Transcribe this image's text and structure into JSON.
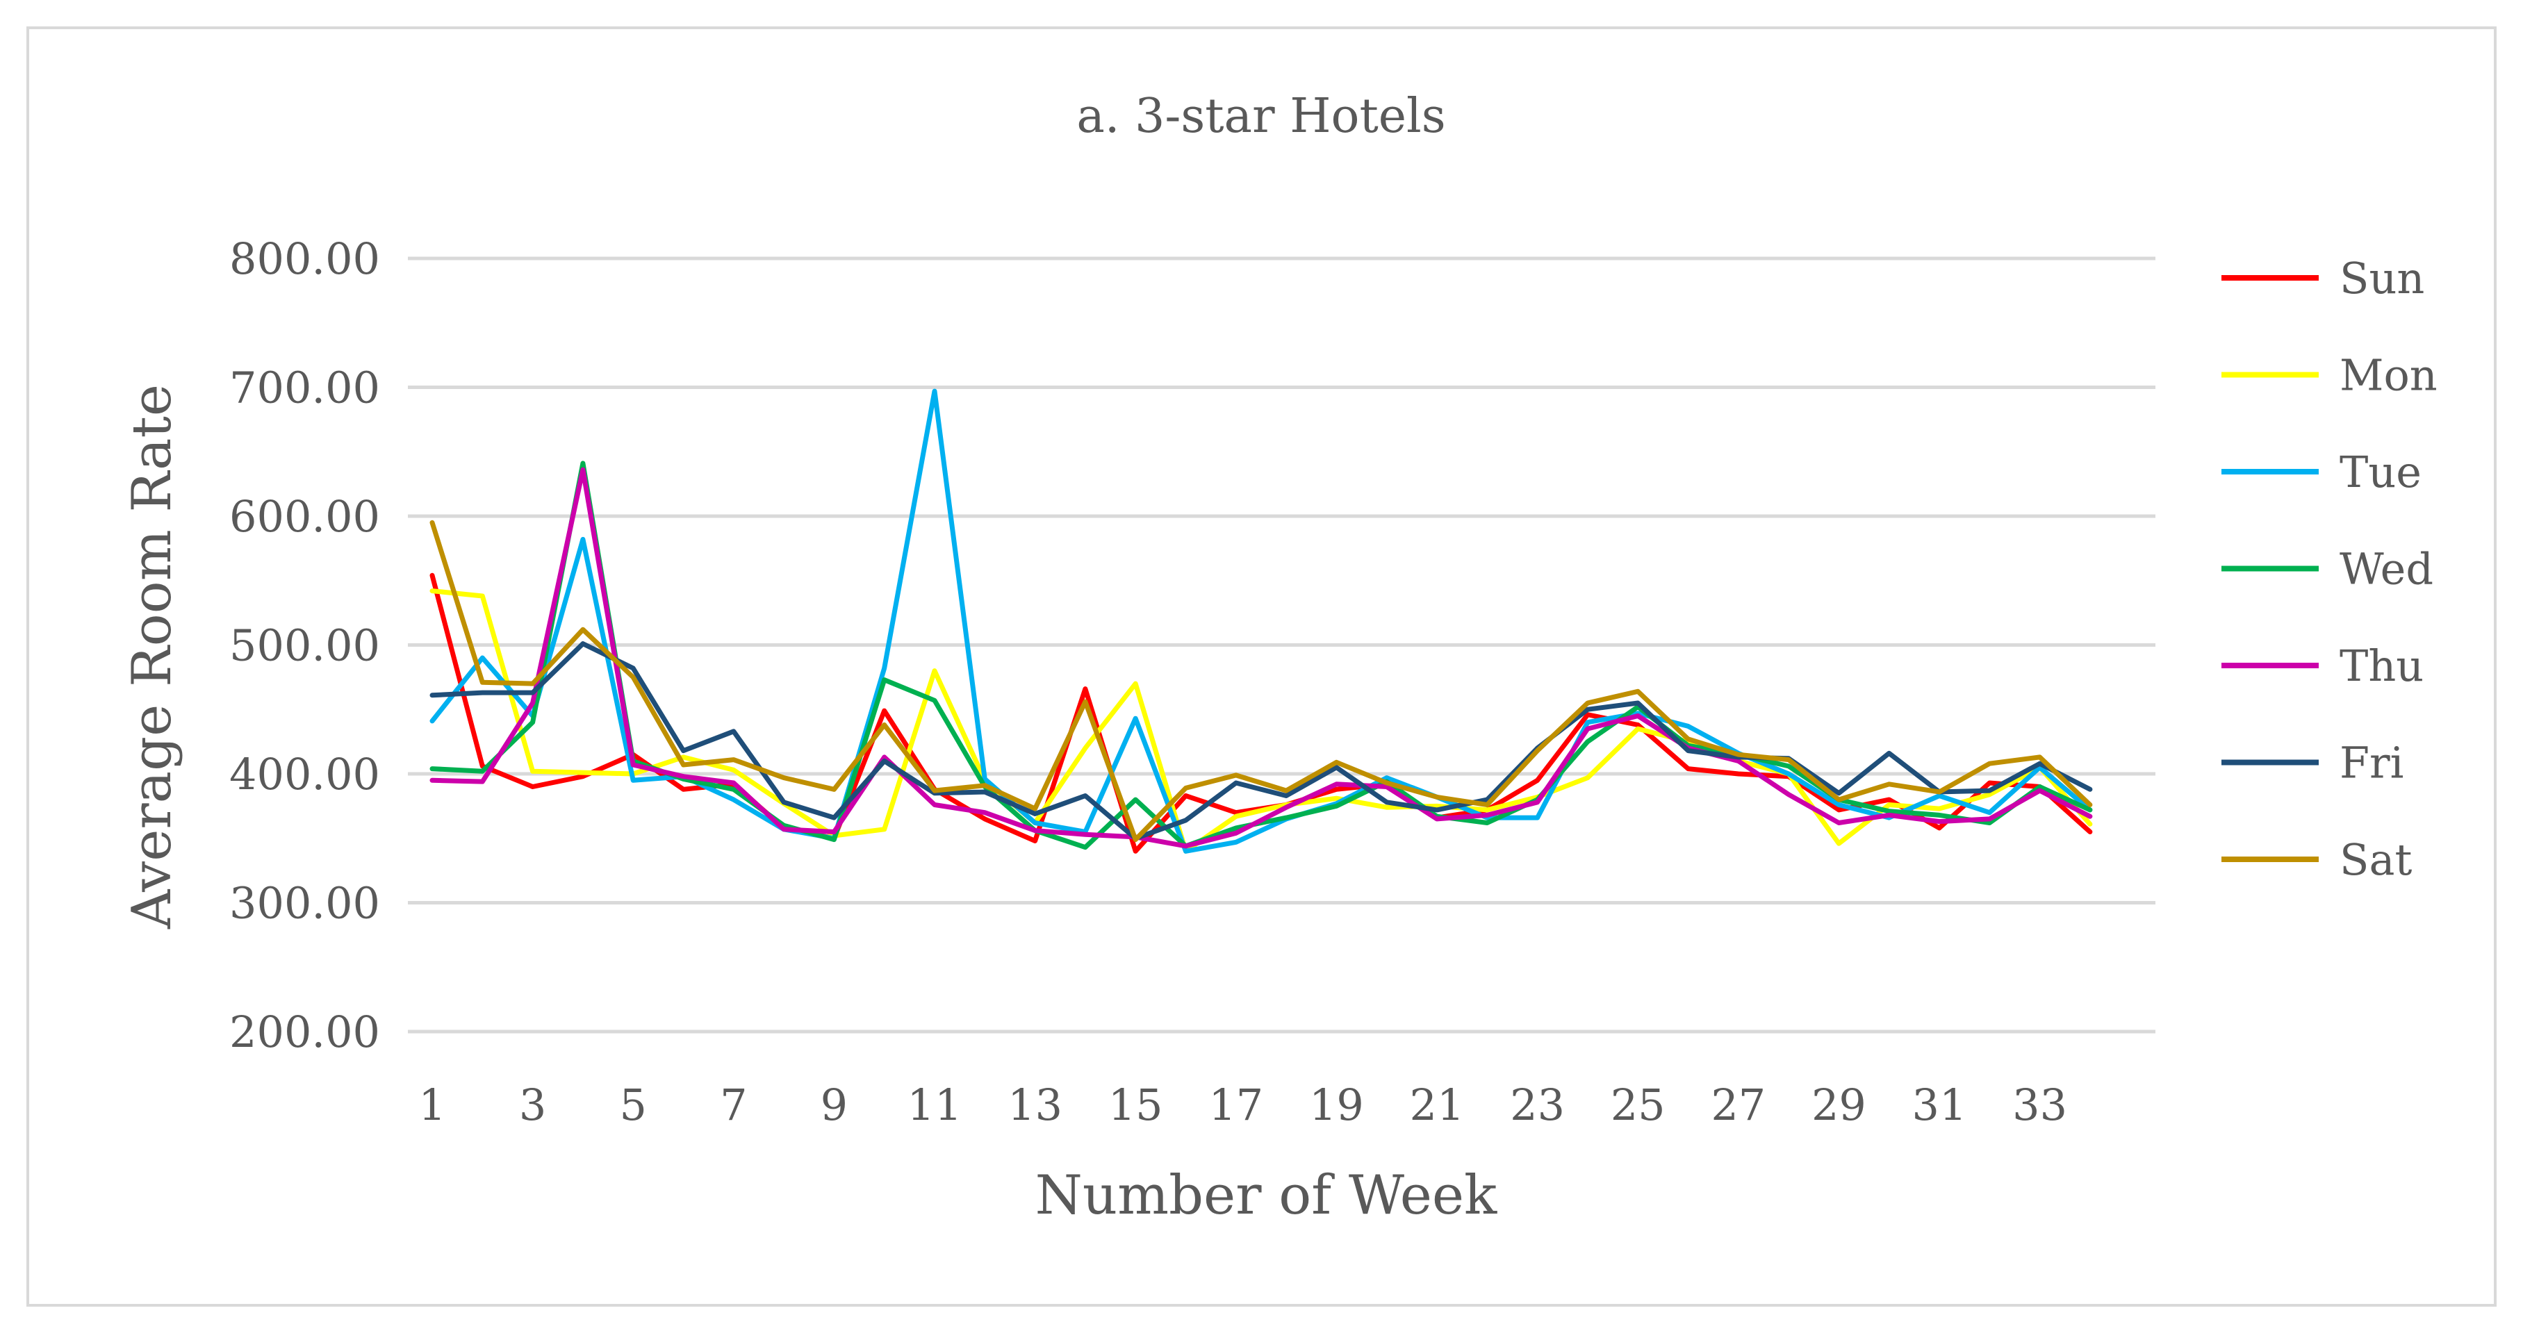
{
  "chart_data": {
    "type": "line",
    "title": "a. 3-star Hotels",
    "xlabel": "Number of Week",
    "ylabel": "Average Room Rate",
    "ylim": [
      200,
      800
    ],
    "y_ticks": [
      200,
      300,
      400,
      500,
      600,
      700,
      800
    ],
    "y_tick_labels": [
      "200.00",
      "300.00",
      "400.00",
      "500.00",
      "600.00",
      "700.00",
      "800.00"
    ],
    "x": [
      1,
      2,
      3,
      4,
      5,
      6,
      7,
      8,
      9,
      10,
      11,
      12,
      13,
      14,
      15,
      16,
      17,
      18,
      19,
      20,
      21,
      22,
      23,
      24,
      25,
      26,
      27,
      28,
      29,
      30,
      31,
      32,
      33,
      34
    ],
    "x_tick_labels": [
      "1",
      "3",
      "5",
      "7",
      "9",
      "11",
      "13",
      "15",
      "17",
      "19",
      "21",
      "23",
      "25",
      "27",
      "29",
      "31",
      "33"
    ],
    "x_tick_values": [
      1,
      3,
      5,
      7,
      9,
      11,
      13,
      15,
      17,
      19,
      21,
      23,
      25,
      27,
      29,
      31,
      33
    ],
    "legend_position": "right",
    "grid": true,
    "series": [
      {
        "name": "Sun",
        "color": "#ff0000",
        "values": [
          554,
          406,
          390,
          398,
          415,
          388,
          392,
          358,
          350,
          449,
          388,
          365,
          348,
          466,
          340,
          383,
          370,
          376,
          388,
          392,
          366,
          372,
          395,
          446,
          438,
          404,
          400,
          398,
          372,
          380,
          358,
          393,
          390,
          355
        ]
      },
      {
        "name": "Mon",
        "color": "#ffff00",
        "values": [
          542,
          538,
          402,
          401,
          400,
          413,
          403,
          377,
          352,
          357,
          480,
          395,
          362,
          420,
          470,
          340,
          367,
          376,
          381,
          374,
          375,
          372,
          382,
          397,
          435,
          425,
          410,
          400,
          346,
          376,
          373,
          384,
          405,
          361
        ]
      },
      {
        "name": "Tue",
        "color": "#00b0f0",
        "values": [
          441,
          490,
          445,
          582,
          395,
          398,
          380,
          357,
          350,
          482,
          697,
          396,
          362,
          355,
          443,
          340,
          347,
          365,
          377,
          397,
          382,
          366,
          366,
          440,
          447,
          437,
          416,
          400,
          376,
          366,
          383,
          370,
          405,
          372
        ]
      },
      {
        "name": "Wed",
        "color": "#00b050",
        "values": [
          404,
          402,
          440,
          641,
          410,
          396,
          388,
          360,
          349,
          473,
          457,
          390,
          356,
          343,
          380,
          344,
          358,
          366,
          375,
          394,
          367,
          362,
          380,
          425,
          452,
          422,
          415,
          406,
          380,
          371,
          368,
          362,
          390,
          372
        ]
      },
      {
        "name": "Thu",
        "color": "#cc00aa",
        "values": [
          395,
          394,
          455,
          636,
          407,
          398,
          393,
          357,
          355,
          413,
          376,
          370,
          356,
          353,
          351,
          344,
          354,
          374,
          392,
          390,
          365,
          368,
          378,
          435,
          445,
          420,
          410,
          384,
          362,
          368,
          363,
          365,
          387,
          367
        ]
      },
      {
        "name": "Fri",
        "color": "#1f4e79",
        "values": [
          461,
          463,
          463,
          501,
          482,
          418,
          433,
          378,
          366,
          410,
          385,
          386,
          369,
          383,
          350,
          364,
          393,
          383,
          405,
          378,
          372,
          380,
          420,
          450,
          455,
          418,
          413,
          412,
          385,
          416,
          386,
          387,
          408,
          388
        ]
      },
      {
        "name": "Sat",
        "color": "#bf8f00",
        "values": [
          595,
          471,
          470,
          512,
          475,
          407,
          411,
          397,
          388,
          438,
          387,
          391,
          373,
          456,
          349,
          389,
          399,
          387,
          409,
          393,
          382,
          376,
          418,
          455,
          464,
          427,
          415,
          411,
          380,
          392,
          386,
          408,
          413,
          376
        ]
      }
    ]
  }
}
